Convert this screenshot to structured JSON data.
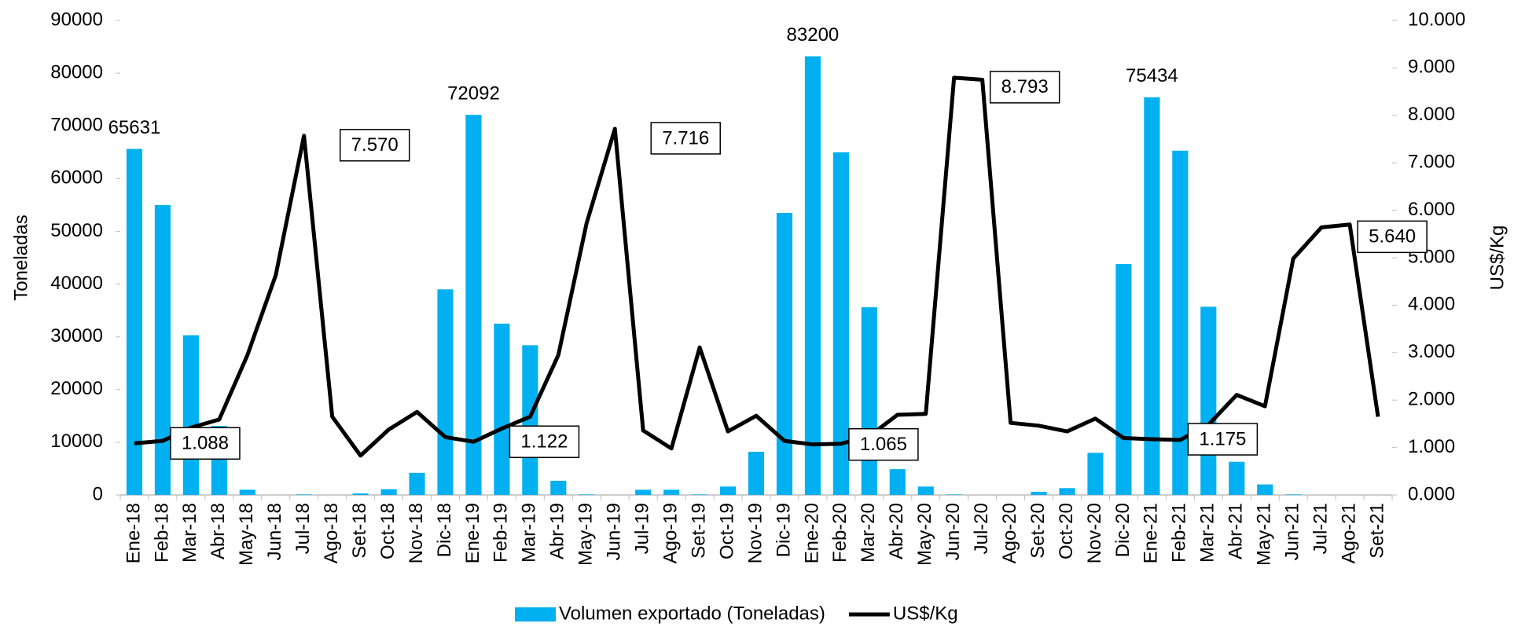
{
  "chart_data": {
    "type": "bar_line",
    "y_label": "Toneladas",
    "y2_label": "US$/Kg",
    "categories": [
      "Ene-18",
      "Feb-18",
      "Mar-18",
      "Abr-18",
      "May-18",
      "Jun-18",
      "Jul-18",
      "Ago-18",
      "Set-18",
      "Oct-18",
      "Nov-18",
      "Dic-18",
      "Ene-19",
      "Feb-19",
      "Mar-19",
      "Abr-19",
      "May-19",
      "Jun-19",
      "Jul-19",
      "Ago-19",
      "Set-19",
      "Oct-19",
      "Nov-19",
      "Dic-19",
      "Ene-20",
      "Feb-20",
      "Mar-20",
      "Abr-20",
      "May-20",
      "Jun-20",
      "Jul-20",
      "Ago-20",
      "Set-20",
      "Oct-20",
      "Nov-20",
      "Dic-20",
      "Ene-21",
      "Feb-21",
      "Mar-21",
      "Abr-21",
      "May-21",
      "Jun-21",
      "Jul-21",
      "Ago-21",
      "Set-21"
    ],
    "series": [
      {
        "name": "Volumen exportado (Toneladas)",
        "type": "bar",
        "color": "#00b0f0",
        "values": [
          65631,
          55000,
          30300,
          13100,
          1000,
          0,
          100,
          0,
          300,
          1100,
          4200,
          39000,
          72092,
          32500,
          28400,
          2700,
          100,
          0,
          1000,
          1000,
          100,
          1600,
          8200,
          53500,
          83200,
          65000,
          35600,
          4900,
          1600,
          100,
          0,
          0,
          600,
          1300,
          8000,
          43800,
          75434,
          65300,
          35700,
          6300,
          2000,
          100,
          0,
          0,
          0
        ],
        "value_labels": [
          "65631",
          null,
          null,
          null,
          null,
          null,
          null,
          null,
          null,
          null,
          null,
          null,
          "72092",
          null,
          null,
          null,
          null,
          null,
          null,
          null,
          null,
          null,
          null,
          null,
          "83200",
          null,
          null,
          null,
          null,
          null,
          null,
          null,
          null,
          null,
          null,
          null,
          "75434",
          null,
          null,
          null,
          null,
          null,
          null,
          null,
          null
        ]
      },
      {
        "name": "US$/Kg",
        "type": "line",
        "axis": "y2",
        "color": "#000000",
        "values": [
          1.088,
          1.14,
          1.42,
          1.59,
          2.95,
          4.63,
          7.57,
          1.65,
          0.83,
          1.38,
          1.75,
          1.22,
          1.122,
          1.4,
          1.65,
          2.95,
          5.73,
          7.716,
          1.36,
          0.98,
          3.11,
          1.34,
          1.67,
          1.14,
          1.065,
          1.08,
          1.24,
          1.69,
          1.71,
          8.793,
          8.75,
          1.52,
          1.46,
          1.34,
          1.61,
          1.2,
          1.175,
          1.16,
          1.48,
          2.11,
          1.87,
          4.98,
          5.64,
          5.7,
          1.65
        ],
        "value_labels": [
          "1.088",
          null,
          null,
          null,
          null,
          null,
          "7.570",
          null,
          null,
          null,
          null,
          null,
          "1.122",
          null,
          null,
          null,
          null,
          "7.716",
          null,
          null,
          null,
          null,
          null,
          null,
          "1.065",
          null,
          null,
          null,
          null,
          "8.793",
          null,
          null,
          null,
          null,
          null,
          null,
          "1.175",
          null,
          null,
          null,
          null,
          null,
          "5.640",
          null,
          null
        ]
      }
    ],
    "ylim": [
      0,
      90000
    ],
    "yticks": [
      0,
      10000,
      20000,
      30000,
      40000,
      50000,
      60000,
      70000,
      80000,
      90000
    ],
    "y2lim": [
      0,
      10
    ],
    "y2ticks": [
      {
        "value": 0,
        "label": "0.000"
      },
      {
        "value": 1,
        "label": "1.000"
      },
      {
        "value": 2,
        "label": "2.000"
      },
      {
        "value": 3,
        "label": "3.000"
      },
      {
        "value": 4,
        "label": "4.000"
      },
      {
        "value": 5,
        "label": "5.000"
      },
      {
        "value": 6,
        "label": "6.000"
      },
      {
        "value": 7,
        "label": "7.000"
      },
      {
        "value": 8,
        "label": "8.000"
      },
      {
        "value": 9,
        "label": "9.000"
      },
      {
        "value": 10,
        "label": "10.000"
      }
    ],
    "grid": false,
    "legend": "bottom"
  }
}
